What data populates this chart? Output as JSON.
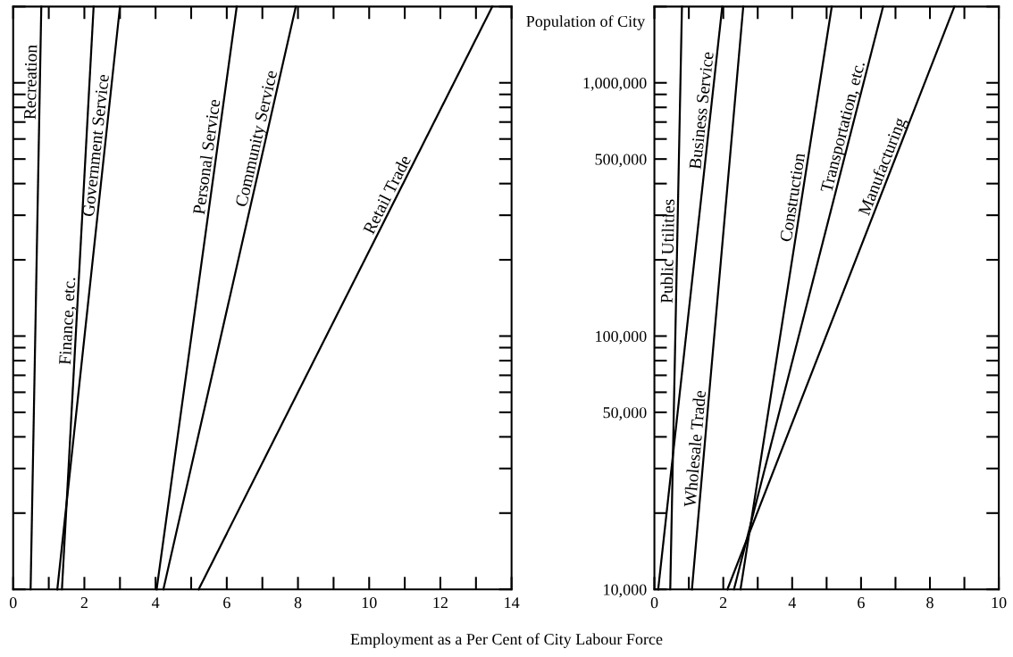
{
  "chart_data": [
    {
      "type": "line",
      "xlabel": "Employment as a Per Cent of City Labour Force",
      "log": true,
      "tick_labels": "x",
      "xlim": [
        0,
        14
      ],
      "xticks": [
        0,
        {
          "value": 1,
          "label": null
        },
        2,
        {
          "value": 3,
          "label": null
        },
        4,
        {
          "value": 5,
          "label": null
        },
        6,
        {
          "value": 7,
          "label": null
        },
        8,
        {
          "value": 9,
          "label": null
        },
        10,
        {
          "value": 11,
          "label": null
        },
        12,
        {
          "value": 13,
          "label": null
        },
        14
      ],
      "ylim": [
        10000,
        2000000
      ],
      "yticks": [
        {
          "value": 10000,
          "label": null
        },
        {
          "value": 20000,
          "label": null
        },
        {
          "value": 30000,
          "label": null
        },
        {
          "value": 40000,
          "label": null
        },
        {
          "value": 50000,
          "label": null
        },
        {
          "value": 60000,
          "label": null
        },
        {
          "value": 70000,
          "label": null
        },
        {
          "value": 80000,
          "label": null
        },
        {
          "value": 90000,
          "label": null
        },
        {
          "value": 100000,
          "label": null
        },
        {
          "value": 200000,
          "label": null
        },
        {
          "value": 300000,
          "label": null
        },
        {
          "value": 400000,
          "label": null
        },
        {
          "value": 500000,
          "label": null
        },
        {
          "value": 600000,
          "label": null
        },
        {
          "value": 700000,
          "label": null
        },
        {
          "value": 800000,
          "label": null
        },
        {
          "value": 900000,
          "label": null
        },
        {
          "value": 1000000,
          "label": null
        },
        {
          "value": 2000000,
          "label": null
        }
      ],
      "series": [
        {
          "name": "Recreation",
          "color": "#000000",
          "x": [
            0.49,
            0.79
          ],
          "values": [
            10000,
            2000000
          ]
        },
        {
          "name": "Finance, etc.",
          "color": "#000000",
          "x": [
            1.37,
            2.26
          ],
          "values": [
            10000,
            2000000
          ]
        },
        {
          "name": "Government Service",
          "color": "#000000",
          "x": [
            1.24,
            3.0
          ],
          "values": [
            10000,
            2000000
          ]
        },
        {
          "name": "Personal Service",
          "color": "#000000",
          "x": [
            4.03,
            6.28
          ],
          "values": [
            10000,
            2000000
          ]
        },
        {
          "name": "Community Service",
          "color": "#000000",
          "x": [
            4.22,
            7.94
          ],
          "values": [
            10000,
            2000000
          ]
        },
        {
          "name": "Retail Trade",
          "color": "#000000",
          "x": [
            5.21,
            13.46
          ],
          "values": [
            10000,
            2000000
          ]
        }
      ]
    },
    {
      "type": "line",
      "ylabel": "Population of City",
      "log": true,
      "xlim": [
        0,
        10
      ],
      "xticks": [
        0,
        {
          "value": 1,
          "label": null
        },
        2,
        {
          "value": 3,
          "label": null
        },
        4,
        {
          "value": 5,
          "label": null
        },
        6,
        {
          "value": 7,
          "label": null
        },
        8,
        {
          "value": 9,
          "label": null
        },
        10
      ],
      "ylim": [
        10000,
        2000000
      ],
      "yticks": [
        {
          "value": 10000,
          "label": "10,000"
        },
        {
          "value": 20000,
          "label": null
        },
        {
          "value": 30000,
          "label": null
        },
        {
          "value": 40000,
          "label": null
        },
        {
          "value": 50000,
          "label": "50,000"
        },
        {
          "value": 60000,
          "label": null
        },
        {
          "value": 70000,
          "label": null
        },
        {
          "value": 80000,
          "label": null
        },
        {
          "value": 90000,
          "label": null
        },
        {
          "value": 100000,
          "label": "100,000"
        },
        {
          "value": 200000,
          "label": null
        },
        {
          "value": 300000,
          "label": null
        },
        {
          "value": 400000,
          "label": null
        },
        {
          "value": 500000,
          "label": "500,000"
        },
        {
          "value": 600000,
          "label": null
        },
        {
          "value": 700000,
          "label": null
        },
        {
          "value": 800000,
          "label": null
        },
        {
          "value": 900000,
          "label": null
        },
        {
          "value": 1000000,
          "label": "1,000,000"
        },
        {
          "value": 2000000,
          "label": null
        }
      ],
      "series": [
        {
          "name": "Public Utilities",
          "color": "#000000",
          "x": [
            0.46,
            0.8
          ],
          "values": [
            10000,
            2000000
          ]
        },
        {
          "name": "Business Service",
          "color": "#000000",
          "x": [
            0.11,
            1.97
          ],
          "values": [
            10000,
            2000000
          ]
        },
        {
          "name": "Wholesale Trade",
          "color": "#000000",
          "x": [
            1.09,
            2.58
          ],
          "values": [
            10000,
            2000000
          ]
        },
        {
          "name": "Construction",
          "color": "#000000",
          "x": [
            2.5,
            5.15
          ],
          "values": [
            10000,
            2000000
          ]
        },
        {
          "name": "Transportation, etc.",
          "color": "#000000",
          "x": [
            2.31,
            6.64
          ],
          "values": [
            10000,
            2000000
          ]
        },
        {
          "name": "Manufacturing",
          "color": "#000000",
          "x": [
            2.12,
            8.71
          ],
          "values": [
            10000,
            2000000
          ]
        }
      ]
    }
  ]
}
